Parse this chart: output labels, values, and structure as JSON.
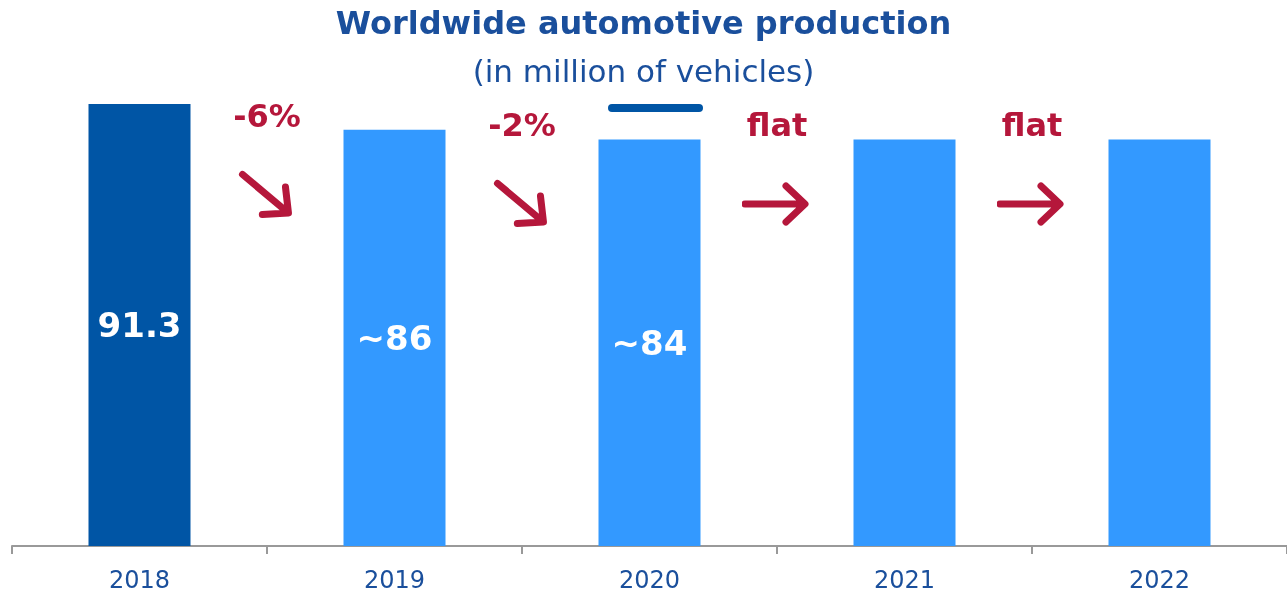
{
  "chart_data": {
    "type": "bar",
    "title": "Worldwide automotive production",
    "subtitle": "(in million of vehicles)",
    "categories": [
      "2018",
      "2019",
      "2020",
      "2021",
      "2022"
    ],
    "values": [
      91.3,
      86,
      84,
      84,
      84
    ],
    "value_labels": [
      "91.3",
      "~86",
      "~84",
      null,
      null
    ],
    "colors": [
      "#0055a5",
      "#3399ff",
      "#3399ff",
      "#3399ff",
      "#3399ff"
    ],
    "tick_labels": "x",
    "grid": false,
    "annotations": [
      "-6%",
      "-2%",
      "flat",
      "flat"
    ]
  }
}
